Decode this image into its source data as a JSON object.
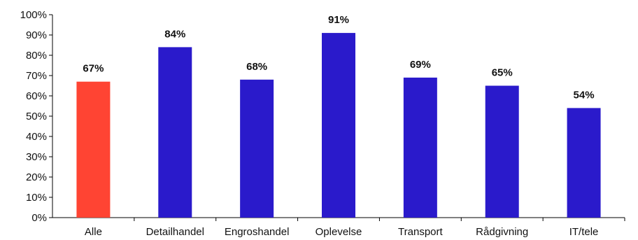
{
  "chart_data": {
    "type": "bar",
    "categories": [
      "Alle",
      "Detailhandel",
      "Engroshandel",
      "Oplevelse",
      "Transport",
      "Rådgivning",
      "IT/tele"
    ],
    "values": [
      67,
      84,
      68,
      91,
      69,
      65,
      54
    ],
    "data_labels": [
      "67%",
      "84%",
      "68%",
      "91%",
      "69%",
      "65%",
      "54%"
    ],
    "highlight_index": 0,
    "ylim": [
      0,
      100
    ],
    "yticks": [
      0,
      10,
      20,
      30,
      40,
      50,
      60,
      70,
      80,
      90,
      100
    ],
    "ytick_labels": [
      "0%",
      "10%",
      "20%",
      "30%",
      "40%",
      "50%",
      "60%",
      "70%",
      "80%",
      "90%",
      "100%"
    ],
    "title": "",
    "xlabel": "",
    "ylabel": "",
    "grid": false,
    "colors": {
      "highlight": "#ff4433",
      "bar": "#2a1acb",
      "text": "#111111",
      "axis": "#000000"
    }
  }
}
